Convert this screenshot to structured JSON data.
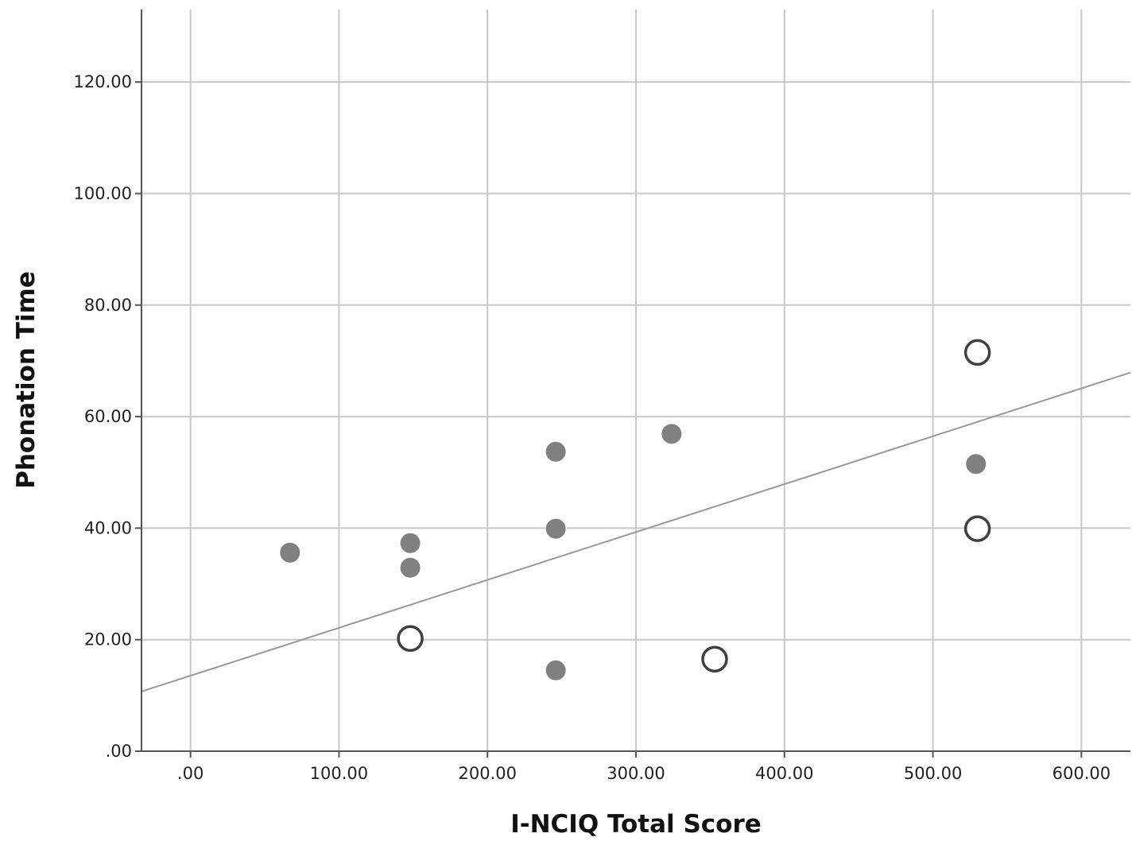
{
  "chart_data": {
    "type": "scatter",
    "title": "",
    "xlabel": "I-NCIQ Total Score",
    "ylabel": "Phonation Time",
    "xlim": [
      -33,
      633
    ],
    "ylim": [
      0,
      133
    ],
    "x_ticks": [
      0,
      100,
      200,
      300,
      400,
      500,
      600
    ],
    "x_tick_labels": [
      ".00",
      "100.00",
      "200.00",
      "300.00",
      "400.00",
      "500.00",
      "600.00"
    ],
    "y_ticks": [
      0,
      20,
      40,
      60,
      80,
      100,
      120
    ],
    "y_tick_labels": [
      ".00",
      "20.00",
      "40.00",
      "60.00",
      "80.00",
      "100.00",
      "120.00"
    ],
    "grid": true,
    "legend": "none",
    "series": [
      {
        "marker": "filled-circle",
        "color": "#808080",
        "points": [
          {
            "x": 67,
            "y": 35.6
          },
          {
            "x": 148,
            "y": 37.3
          },
          {
            "x": 148,
            "y": 32.9
          },
          {
            "x": 246,
            "y": 53.7
          },
          {
            "x": 246,
            "y": 39.9
          },
          {
            "x": 246,
            "y": 14.5
          },
          {
            "x": 324,
            "y": 56.9
          },
          {
            "x": 529,
            "y": 51.5
          }
        ]
      },
      {
        "marker": "open-circle",
        "color": "#404040",
        "points": [
          {
            "x": 148,
            "y": 20.2
          },
          {
            "x": 353,
            "y": 16.5
          },
          {
            "x": 530,
            "y": 71.5
          },
          {
            "x": 530,
            "y": 39.9
          }
        ]
      }
    ],
    "fit_line": {
      "color": "#999999",
      "points": [
        {
          "x": -33,
          "y": 10.7
        },
        {
          "x": 633,
          "y": 67.9
        }
      ]
    }
  }
}
